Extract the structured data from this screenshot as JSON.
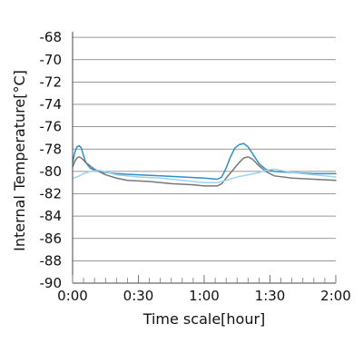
{
  "chart_data": {
    "type": "line",
    "title": "",
    "xlabel": "Time scale[hour]",
    "ylabel": "Internal Temperature[°C]",
    "xlim": [
      0,
      120
    ],
    "ylim": [
      -90,
      -67.5
    ],
    "grid": true,
    "legend": "none",
    "x_ticks": [
      {
        "value": 0,
        "label": "0:00"
      },
      {
        "value": 30,
        "label": "0:30"
      },
      {
        "value": 60,
        "label": "1:00"
      },
      {
        "value": 90,
        "label": "1:30"
      },
      {
        "value": 120,
        "label": "2:00"
      }
    ],
    "y_ticks": [
      {
        "value": -68,
        "label": "-68"
      },
      {
        "value": -70,
        "label": "-70"
      },
      {
        "value": -72,
        "label": "-72"
      },
      {
        "value": -74,
        "label": "-74"
      },
      {
        "value": -76,
        "label": "-76"
      },
      {
        "value": -78,
        "label": "-78"
      },
      {
        "value": -80,
        "label": "-80"
      },
      {
        "value": -82,
        "label": "-82"
      },
      {
        "value": -84,
        "label": "-84"
      },
      {
        "value": -86,
        "label": "-86"
      },
      {
        "value": -88,
        "label": "-88"
      },
      {
        "value": -90,
        "label": "-90"
      }
    ],
    "minor_x_step": 5,
    "series": [
      {
        "color": "#2f8fc9",
        "points": [
          [
            0,
            -79.2
          ],
          [
            1,
            -78.3
          ],
          [
            2,
            -77.8
          ],
          [
            3,
            -77.7
          ],
          [
            4,
            -77.9
          ],
          [
            5,
            -78.6
          ],
          [
            6,
            -79.2
          ],
          [
            8,
            -79.7
          ],
          [
            10,
            -79.9
          ],
          [
            15,
            -80.1
          ],
          [
            20,
            -80.2
          ],
          [
            30,
            -80.3
          ],
          [
            40,
            -80.4
          ],
          [
            50,
            -80.5
          ],
          [
            60,
            -80.6
          ],
          [
            66,
            -80.7
          ],
          [
            68,
            -80.5
          ],
          [
            70,
            -79.7
          ],
          [
            72,
            -78.7
          ],
          [
            74,
            -77.9
          ],
          [
            76,
            -77.6
          ],
          [
            78,
            -77.5
          ],
          [
            80,
            -77.8
          ],
          [
            82,
            -78.4
          ],
          [
            85,
            -79.3
          ],
          [
            88,
            -79.8
          ],
          [
            92,
            -80.0
          ],
          [
            100,
            -80.1
          ],
          [
            110,
            -80.2
          ],
          [
            120,
            -80.2
          ]
        ]
      },
      {
        "color": "#777777",
        "points": [
          [
            0,
            -79.6
          ],
          [
            1,
            -79.1
          ],
          [
            2,
            -78.8
          ],
          [
            3,
            -78.7
          ],
          [
            4,
            -78.8
          ],
          [
            6,
            -79.2
          ],
          [
            10,
            -79.8
          ],
          [
            15,
            -80.3
          ],
          [
            20,
            -80.6
          ],
          [
            25,
            -80.8
          ],
          [
            35,
            -80.9
          ],
          [
            45,
            -81.1
          ],
          [
            55,
            -81.2
          ],
          [
            60,
            -81.3
          ],
          [
            66,
            -81.3
          ],
          [
            68,
            -81.1
          ],
          [
            70,
            -80.6
          ],
          [
            73,
            -79.9
          ],
          [
            76,
            -79.2
          ],
          [
            78,
            -78.8
          ],
          [
            80,
            -78.7
          ],
          [
            82,
            -78.9
          ],
          [
            85,
            -79.5
          ],
          [
            88,
            -80.0
          ],
          [
            92,
            -80.4
          ],
          [
            100,
            -80.6
          ],
          [
            110,
            -80.7
          ],
          [
            120,
            -80.8
          ]
        ]
      },
      {
        "color": "#9ed3ec",
        "points": [
          [
            0,
            -80.6
          ],
          [
            2,
            -80.5
          ],
          [
            5,
            -80.2
          ],
          [
            8,
            -80.0
          ],
          [
            12,
            -79.9
          ],
          [
            20,
            -80.3
          ],
          [
            30,
            -80.5
          ],
          [
            40,
            -80.6
          ],
          [
            50,
            -80.8
          ],
          [
            60,
            -81.0
          ],
          [
            66,
            -81.0
          ],
          [
            70,
            -80.8
          ],
          [
            75,
            -80.5
          ],
          [
            80,
            -80.3
          ],
          [
            85,
            -80.1
          ],
          [
            88,
            -79.9
          ],
          [
            92,
            -79.8
          ],
          [
            100,
            -80.1
          ],
          [
            110,
            -80.3
          ],
          [
            120,
            -80.5
          ]
        ]
      }
    ]
  }
}
